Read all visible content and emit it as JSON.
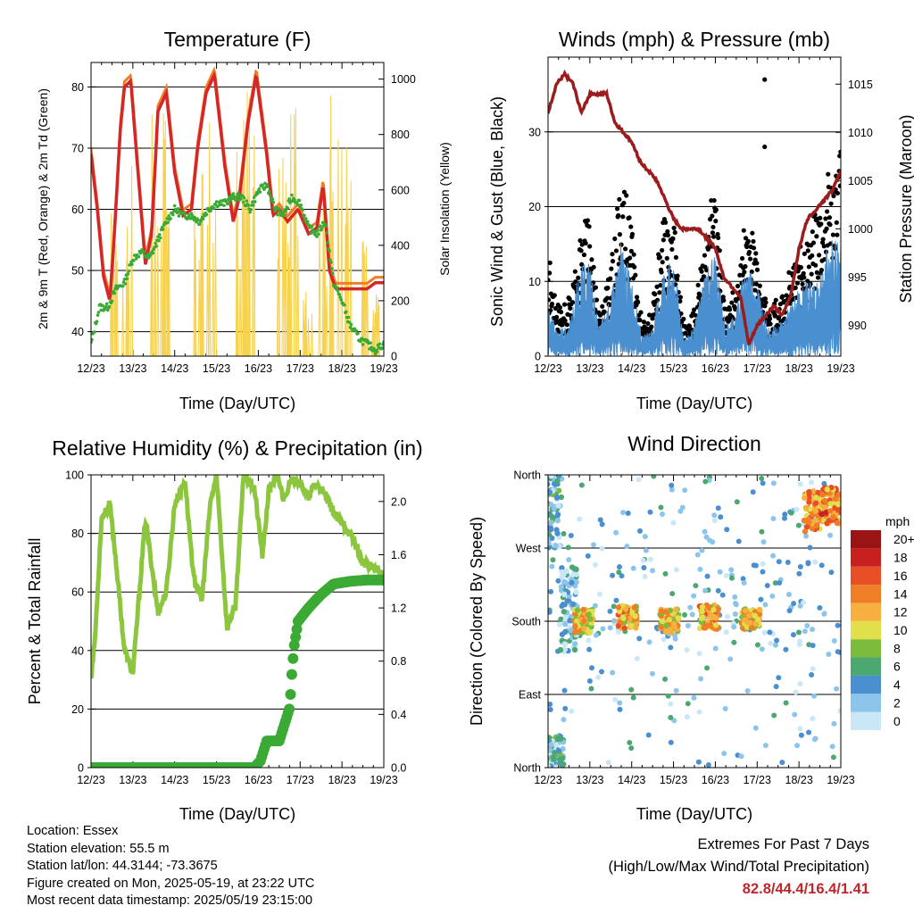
{
  "info": {
    "location": "Location: Essex",
    "elevation": "Station elevation: 55.5 m",
    "latlon": "Station lat/lon: 44.3144; -73.3675",
    "created": "Figure created on Mon, 2025-05-19, at 23:22 UTC",
    "recent": "Most recent data timestamp: 2025/05/19 23:15:00"
  },
  "extremes": {
    "line1": "Extremes For Past 7 Days",
    "line2": "(High/Low/Max Wind/Total Precipitation)",
    "values": "82.8/44.4/16.4/1.41",
    "color": "#c0272d"
  },
  "chart_data": [
    {
      "type": "line",
      "title": "Temperature (F)",
      "xlabel": "Time (Day/UTC)",
      "ylabel": "2m & 9m T (Red, Orange) & 2m Td (Green)",
      "y2label": "Solar Insolation (Yellow)",
      "x_ticks": [
        "12/23",
        "13/23",
        "14/23",
        "15/23",
        "16/23",
        "17/23",
        "18/23",
        "19/23"
      ],
      "ylim": [
        36,
        84
      ],
      "y_ticks": [
        40,
        50,
        60,
        70,
        80
      ],
      "y2lim": [
        0,
        1060
      ],
      "y2_ticks": [
        0,
        200,
        400,
        600,
        800,
        1000
      ],
      "colors": {
        "t2m": "#d62728",
        "t9m": "#f07e26",
        "td": "#3aaa35",
        "solar": "#f7d24e"
      },
      "series": [
        {
          "name": "2m T",
          "x": [
            0,
            0.15,
            0.3,
            0.45,
            0.55,
            0.7,
            0.8,
            0.95,
            1.1,
            1.3,
            1.45,
            1.6,
            1.8,
            2.0,
            2.2,
            2.4,
            2.55,
            2.75,
            2.95,
            3.2,
            3.4,
            3.55,
            3.75,
            3.95,
            4.2,
            4.35,
            4.5,
            4.7,
            4.95,
            5.2,
            5.4,
            5.55,
            5.7,
            5.85,
            6.0,
            6.3,
            6.6,
            6.8,
            7.0
          ],
          "values": [
            69,
            60,
            49,
            45,
            55,
            73,
            80,
            81,
            68,
            51,
            56,
            76,
            79,
            66,
            59,
            60,
            70,
            79,
            82,
            67,
            58,
            62,
            74,
            82,
            69,
            59,
            60,
            58,
            60,
            56,
            57,
            64,
            50,
            47,
            47,
            47,
            47,
            48,
            48
          ]
        },
        {
          "name": "Td",
          "x": [
            0,
            0.2,
            0.4,
            0.6,
            0.8,
            1.0,
            1.2,
            1.4,
            1.6,
            1.8,
            2.0,
            2.2,
            2.4,
            2.6,
            2.8,
            3.0,
            3.2,
            3.4,
            3.6,
            3.8,
            4.0,
            4.2,
            4.4,
            4.6,
            4.8,
            5.0,
            5.2,
            5.4,
            5.6,
            5.8,
            6.0,
            6.2,
            6.4,
            6.6,
            6.8,
            7.0
          ],
          "values": [
            38,
            44,
            44,
            47,
            48,
            52,
            53,
            52,
            55,
            58,
            60,
            59,
            59,
            58,
            60,
            61,
            61,
            62,
            62,
            60,
            63,
            64,
            60,
            59,
            62,
            61,
            57,
            56,
            58,
            48,
            45,
            41,
            39,
            38,
            37,
            38
          ]
        },
        {
          "name": "Solar Insolation",
          "peaks_x": [
            0.6,
            0.85,
            1.55,
            1.85,
            2.6,
            2.85,
            3.55,
            3.85,
            4.6,
            4.85,
            5.2,
            5.6,
            5.85,
            6.1,
            6.5,
            6.75
          ],
          "peaks_y": [
            560,
            700,
            880,
            920,
            850,
            940,
            870,
            960,
            780,
            980,
            350,
            620,
            1020,
            800,
            420,
            260
          ]
        }
      ]
    },
    {
      "type": "scatter",
      "title": "Winds (mph) & Pressure (mb)",
      "xlabel": "Time (Day/UTC)",
      "ylabel": "Sonic Wind & Gust (Blue, Black)",
      "y2label": "Station Pressure (Maroon)",
      "x_ticks": [
        "12/23",
        "13/23",
        "14/23",
        "15/23",
        "16/23",
        "17/23",
        "18/23",
        "19/23"
      ],
      "ylim": [
        0,
        40
      ],
      "y_ticks": [
        0,
        10,
        20,
        30
      ],
      "y2lim": [
        986.8,
        1017.8
      ],
      "y2_ticks": [
        990,
        995,
        1000,
        1005,
        1010,
        1015
      ],
      "colors": {
        "wind": "#4a90d0",
        "gust": "#000000",
        "pressure": "#9b1c1c"
      },
      "series": [
        {
          "name": "Sonic Wind",
          "x": [
            0,
            0.2,
            0.5,
            0.75,
            1.0,
            1.2,
            1.5,
            1.75,
            2.0,
            2.25,
            2.5,
            2.75,
            3.0,
            3.25,
            3.5,
            3.75,
            4.0,
            4.25,
            4.5,
            4.75,
            5.0,
            5.25,
            5.5,
            5.75,
            6.0,
            6.25,
            6.5,
            6.75,
            7.0
          ],
          "values": [
            5,
            3,
            3,
            9,
            10,
            3,
            6,
            12,
            8,
            2,
            3,
            9,
            10,
            2,
            3,
            9,
            11,
            3,
            5,
            10,
            8,
            3,
            3,
            5,
            7,
            8,
            9,
            12,
            13
          ]
        },
        {
          "name": "Sonic Gust",
          "x": [
            0,
            0.2,
            0.5,
            0.75,
            1.0,
            1.2,
            1.5,
            1.75,
            2.0,
            2.25,
            2.5,
            2.75,
            3.0,
            3.25,
            3.5,
            3.75,
            4.0,
            4.25,
            4.5,
            4.75,
            5.0,
            5.25,
            5.5,
            5.75,
            6.0,
            6.25,
            6.5,
            6.75,
            7.0
          ],
          "values": [
            12,
            5,
            6,
            14,
            17,
            5,
            10,
            21,
            15,
            3,
            5,
            15,
            16,
            3,
            5,
            15,
            20,
            5,
            8,
            17,
            13,
            5,
            6,
            9,
            12,
            15,
            18,
            22,
            25
          ]
        },
        {
          "name": "Station Pressure",
          "x": [
            0,
            0.2,
            0.4,
            0.6,
            0.8,
            1.0,
            1.2,
            1.4,
            1.6,
            1.8,
            2.0,
            2.2,
            2.4,
            2.6,
            2.8,
            3.0,
            3.2,
            3.4,
            3.6,
            3.8,
            4.0,
            4.2,
            4.4,
            4.6,
            4.8,
            5.0,
            5.2,
            5.4,
            5.6,
            5.8,
            6.0,
            6.2,
            6.4,
            6.6,
            6.8,
            7.0
          ],
          "values": [
            1012,
            1015,
            1016,
            1015,
            1012,
            1014,
            1014,
            1014,
            1011,
            1010,
            1009,
            1007,
            1006,
            1005,
            1003,
            1001,
            1000,
            1000,
            1000,
            999,
            998,
            995,
            994,
            993,
            988,
            990,
            991,
            992,
            991,
            993,
            998,
            1001,
            1002,
            1003,
            1004,
            1006
          ]
        }
      ]
    },
    {
      "type": "line",
      "title": "Relative Humidity (%) & Precipitation (in)",
      "xlabel": "Time (Day/UTC)",
      "ylabel": "Percent & Total Rainfall",
      "x_ticks": [
        "12/23",
        "13/23",
        "14/23",
        "15/23",
        "16/23",
        "17/23",
        "18/23",
        "19/23"
      ],
      "ylim": [
        0,
        100
      ],
      "y_ticks": [
        0,
        20,
        40,
        60,
        80,
        100
      ],
      "y2lim": [
        0,
        2.2
      ],
      "y2_ticks": [
        "0.0",
        "0.4",
        "0.8",
        "1.2",
        "1.6",
        "2.0"
      ],
      "colors": {
        "rh": "#8cc63f",
        "precip": "#3aaa35"
      },
      "series": [
        {
          "name": "RH",
          "x": [
            0,
            0.1,
            0.25,
            0.45,
            0.6,
            0.8,
            1.0,
            1.1,
            1.3,
            1.6,
            1.8,
            2.0,
            2.25,
            2.45,
            2.65,
            2.85,
            3.0,
            3.25,
            3.45,
            3.65,
            3.9,
            4.1,
            4.25,
            4.45,
            4.6,
            4.75,
            4.9,
            5.05,
            5.2,
            5.35,
            5.5,
            5.7,
            5.9,
            6.1,
            6.3,
            6.5,
            6.8,
            7.0
          ],
          "values": [
            31,
            45,
            85,
            90,
            70,
            40,
            32,
            50,
            85,
            53,
            60,
            90,
            98,
            65,
            57,
            90,
            100,
            48,
            55,
            100,
            96,
            72,
            95,
            100,
            92,
            97,
            99,
            96,
            92,
            97,
            95,
            90,
            85,
            82,
            77,
            70,
            68,
            66
          ]
        },
        {
          "name": "Precipitation",
          "x": [
            0,
            1.0,
            2.0,
            3.0,
            3.9,
            4.05,
            4.2,
            4.5,
            4.65,
            4.75,
            4.8,
            4.85,
            4.95,
            5.2,
            5.5,
            5.8,
            6.2,
            6.6,
            7.0
          ],
          "values": [
            0,
            0,
            0,
            0,
            0,
            0.05,
            0.2,
            0.2,
            0.35,
            0.45,
            0.7,
            0.9,
            1.1,
            1.2,
            1.3,
            1.38,
            1.4,
            1.41,
            1.41
          ]
        }
      ]
    },
    {
      "type": "scatter",
      "title": "Wind Direction",
      "xlabel": "Time (Day/UTC)",
      "ylabel": "Direction (Colored By Speed)",
      "x_ticks": [
        "12/23",
        "13/23",
        "14/23",
        "15/23",
        "16/23",
        "17/23",
        "18/23",
        "19/23"
      ],
      "ylim": [
        0,
        360
      ],
      "y_ticks": [
        0,
        90,
        180,
        270,
        360
      ],
      "y_tick_labels": [
        "North",
        "East",
        "South",
        "West",
        "North"
      ],
      "colorbar_title": "mph",
      "colorbar_labels": [
        "0",
        "2",
        "4",
        "6",
        "8",
        "10",
        "12",
        "14",
        "16",
        "18",
        "20+"
      ],
      "colorbar_colors": [
        "#c9e7f7",
        "#8cc4ec",
        "#4a8fd0",
        "#4aa870",
        "#7cbc3c",
        "#e2e04a",
        "#f7b040",
        "#f07e26",
        "#e84f26",
        "#c8201f",
        "#991414"
      ],
      "clusters": [
        {
          "x": 0.1,
          "dir_from": 270,
          "dir_to": 360,
          "speed": 4
        },
        {
          "x": 0.15,
          "dir_from": 0,
          "dir_to": 40,
          "speed": 4
        },
        {
          "x": 0.5,
          "dir_from": 140,
          "dir_to": 250,
          "speed": 3
        },
        {
          "x": 0.85,
          "dir_from": 165,
          "dir_to": 195,
          "speed": 11
        },
        {
          "x": 1.9,
          "dir_from": 170,
          "dir_to": 200,
          "speed": 12
        },
        {
          "x": 2.9,
          "dir_from": 165,
          "dir_to": 195,
          "speed": 11
        },
        {
          "x": 3.85,
          "dir_from": 170,
          "dir_to": 200,
          "speed": 12
        },
        {
          "x": 4.85,
          "dir_from": 170,
          "dir_to": 195,
          "speed": 11
        },
        {
          "x": 6.35,
          "dir_from": 290,
          "dir_to": 340,
          "speed": 13
        },
        {
          "x": 6.75,
          "dir_from": 300,
          "dir_to": 345,
          "speed": 14
        }
      ]
    }
  ]
}
